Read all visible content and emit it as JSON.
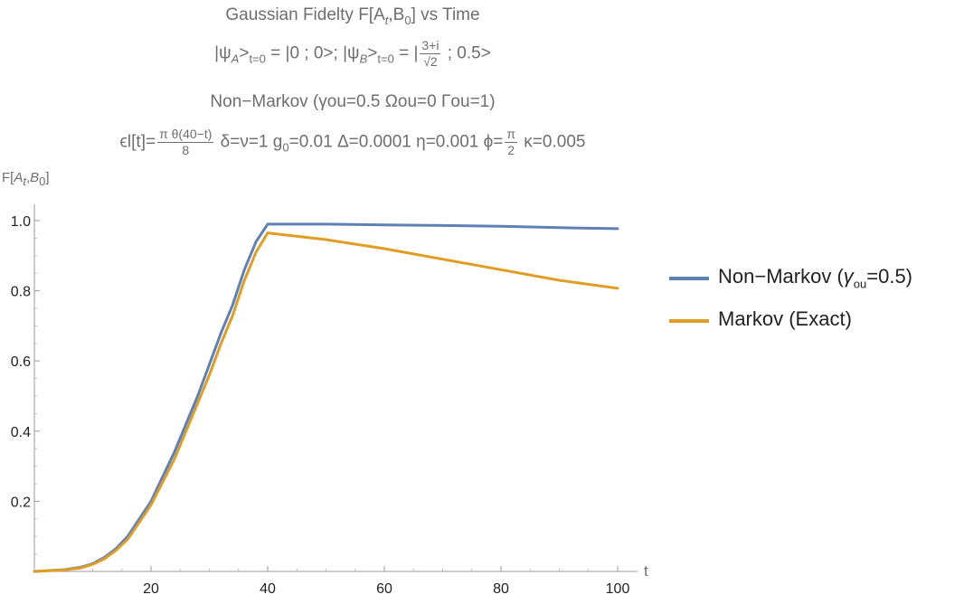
{
  "header": {
    "line1": "Gaussian Fidelty F[A",
    "line1_sub_a": "t",
    "line1_mid": ",B",
    "line1_sub_b": "0",
    "line1_end": "] vs Time",
    "psiA": "|ψ",
    "psiA_sub": "A",
    "psiA_t": ">",
    "psiA_tsub": "t=0",
    "psiA_val": " = |0 ; 0>; |ψ",
    "psiB_sub": "B",
    "psiB_t": ">",
    "psiB_tsub": "t=0",
    "psiB_eq": " = |",
    "psiB_num": "3+i",
    "psiB_den": "√2",
    "psiB_end": " ; 0.5>",
    "line3": "Non−Markov (γou=0.5  Ωou=0 Γou=1)",
    "eps_pre": "ϵl[t]=",
    "eps_num": "π θ(40−t)",
    "eps_den": "8",
    "params": " δ=ν=1 g",
    "params_sub": "0",
    "params_rest": "=0.01 Δ=0.0001 η=0.001 ϕ=",
    "phi_num": "π",
    "phi_den": "2",
    "kappa": " κ=0.005"
  },
  "chart_data": {
    "type": "line",
    "title": "Gaussian Fidelty F[At,B0] vs Time",
    "ylabel": "F[At,B0]",
    "xlabel": "t",
    "xlim": [
      0,
      100
    ],
    "ylim": [
      0,
      1.0
    ],
    "xticks": [
      20,
      40,
      60,
      80,
      100
    ],
    "yticks": [
      0.2,
      0.4,
      0.6,
      0.8,
      1.0
    ],
    "grid": false,
    "legend_position": "right",
    "series": [
      {
        "name": "Non−Markov (γou=0.5)",
        "color": "#5e81b5",
        "x": [
          0,
          5,
          8,
          10,
          12,
          14,
          16,
          18,
          20,
          22,
          24,
          26,
          28,
          30,
          32,
          34,
          36,
          38,
          40,
          50,
          60,
          70,
          80,
          90,
          100
        ],
        "y": [
          0.0,
          0.005,
          0.012,
          0.022,
          0.04,
          0.065,
          0.1,
          0.15,
          0.2,
          0.27,
          0.34,
          0.42,
          0.5,
          0.59,
          0.68,
          0.76,
          0.86,
          0.94,
          0.99,
          0.99,
          0.988,
          0.986,
          0.984,
          0.98,
          0.977
        ]
      },
      {
        "name": "Markov (Exact)",
        "color": "#e19c24",
        "x": [
          0,
          5,
          8,
          10,
          12,
          14,
          16,
          18,
          20,
          22,
          24,
          26,
          28,
          30,
          32,
          34,
          36,
          38,
          40,
          50,
          60,
          70,
          80,
          90,
          100
        ],
        "y": [
          0.0,
          0.004,
          0.01,
          0.02,
          0.036,
          0.06,
          0.092,
          0.14,
          0.19,
          0.255,
          0.32,
          0.4,
          0.48,
          0.56,
          0.65,
          0.73,
          0.83,
          0.91,
          0.965,
          0.946,
          0.92,
          0.89,
          0.86,
          0.83,
          0.807
        ]
      }
    ]
  },
  "legend": {
    "item1_pre": "Non−Markov (",
    "item1_g": "γ",
    "item1_sub": "ou",
    "item1_post": "=0.5)",
    "item2": "Markov (Exact)"
  },
  "axis": {
    "ylabel_pre": "F[",
    "ylabel_A": "A",
    "ylabel_t": "t",
    "ylabel_mid": ",",
    "ylabel_B": "B",
    "ylabel_0": "0",
    "ylabel_end": "]",
    "xlabel": "t"
  }
}
